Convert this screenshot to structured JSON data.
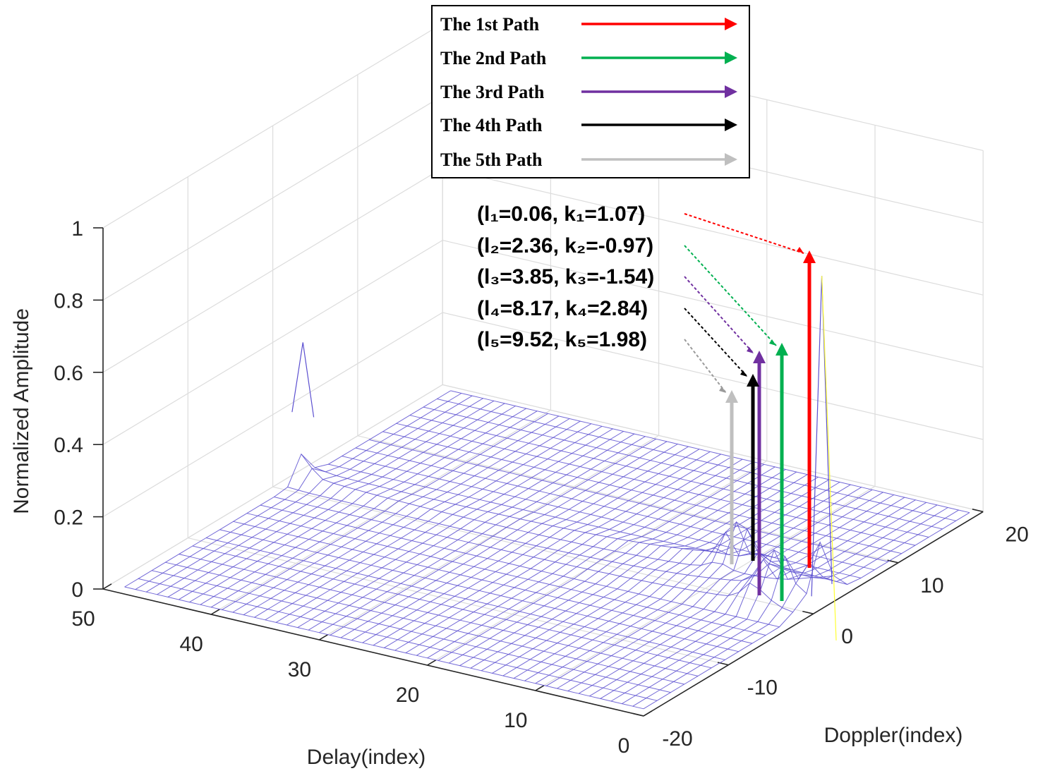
{
  "chart_data": {
    "type": "surface3d",
    "title": "",
    "xlabel": "Delay(index)",
    "ylabel": "Doppler(index)",
    "zlabel": "Normalized Amplitude",
    "xlim": [
      0,
      50
    ],
    "ylim": [
      -20,
      20
    ],
    "zlim": [
      0,
      1
    ],
    "x_ticks": [
      "0",
      "10",
      "20",
      "30",
      "40",
      "50"
    ],
    "y_ticks": [
      "-20",
      "-10",
      "0",
      "10",
      "20"
    ],
    "z_ticks": [
      "0",
      "0.2",
      "0.4",
      "0.6",
      "0.8",
      "1"
    ],
    "surface_color": "#5b4fd0",
    "paths": [
      {
        "name": "The 1st Path",
        "color": "#ff0000",
        "l": 0.06,
        "k": 1.07,
        "amplitude": 0.9,
        "label": "(l₁=0.06, k₁=1.07)"
      },
      {
        "name": "The 2nd Path",
        "color": "#00b050",
        "l": 2.36,
        "k": -0.97,
        "amplitude": 0.66,
        "label": "(l₂=2.36, k₂=-0.97)"
      },
      {
        "name": "The 3rd Path",
        "color": "#7030a0",
        "l": 3.85,
        "k": -1.54,
        "amplitude": 0.66,
        "label": "(l₃=3.85, k₃=-1.54)"
      },
      {
        "name": "The 4th Path",
        "color": "#000000",
        "l": 8.17,
        "k": 2.84,
        "amplitude": 0.58,
        "label": "(l₄=8.17, k₄=2.84)"
      },
      {
        "name": "The 5th Path",
        "color": "#bfbfbf",
        "l": 9.52,
        "k": 1.98,
        "amplitude": 0.53,
        "label": "(l₅=9.52, k₅=1.98)"
      }
    ],
    "secondary_peak": {
      "l": 48,
      "k": 1,
      "amplitude": 0.4
    },
    "legend_position": "top-center"
  }
}
